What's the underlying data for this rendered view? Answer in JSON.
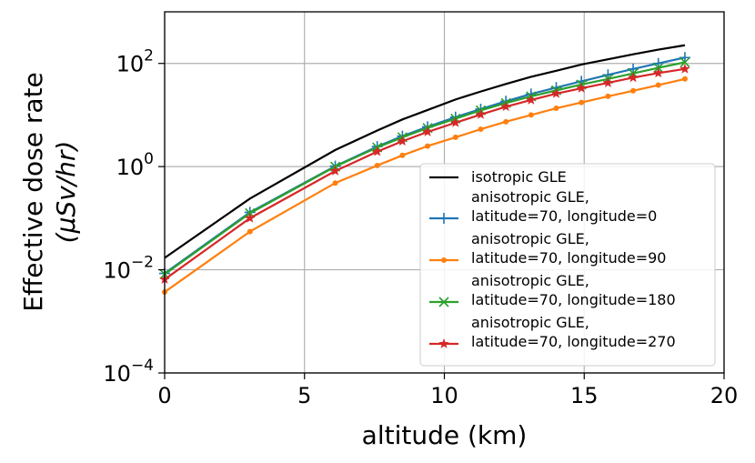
{
  "chart_data": {
    "type": "line",
    "xlabel": "altitude (km)",
    "ylabel_line1": "Effective dose rate",
    "ylabel_line2": "(μSv/hr)",
    "xlim": [
      0,
      20
    ],
    "ylim": [
      0.0001,
      1000
    ],
    "yscale": "log",
    "grid": true,
    "legend_position": "lower-right",
    "x_ticks": [
      0,
      5,
      10,
      15,
      20
    ],
    "x_tick_labels": [
      "0",
      "5",
      "10",
      "15",
      "20"
    ],
    "y_ticks": [
      0.0001,
      0.01,
      1,
      100
    ],
    "y_tick_labels": [
      {
        "base": "10",
        "exp": "−4"
      },
      {
        "base": "10",
        "exp": "−2"
      },
      {
        "base": "10",
        "exp": "0"
      },
      {
        "base": "10",
        "exp": "2"
      }
    ],
    "series": [
      {
        "name": "isotropic GLE",
        "color": "#000000",
        "marker": "none",
        "x": [
          0,
          3.05,
          6.1,
          7.6,
          8.5,
          9.4,
          10.4,
          11.3,
          12.2,
          13.1,
          14.0,
          14.9,
          15.85,
          16.75,
          17.65,
          18.6
        ],
        "y": [
          0.017,
          0.24,
          2.1,
          5.0,
          8.2,
          12.5,
          20,
          28.5,
          40,
          55,
          72,
          95,
          120,
          150,
          185,
          225
        ]
      },
      {
        "name": "anisotropic GLE,\nlatitude=70, longitude=0",
        "color": "#1f77b4",
        "marker": "plus",
        "x": [
          0,
          3.05,
          6.1,
          7.6,
          8.5,
          9.4,
          10.4,
          11.3,
          12.2,
          13.1,
          14.0,
          14.9,
          15.85,
          16.75,
          17.65,
          18.6
        ],
        "y": [
          0.0085,
          0.13,
          1.02,
          2.45,
          3.9,
          5.9,
          9.1,
          13,
          18.5,
          25.5,
          34,
          45,
          60,
          78,
          100,
          130
        ]
      },
      {
        "name": "anisotropic GLE,\nlatitude=70, longitude=90",
        "color": "#ff7f0e",
        "marker": "dot",
        "x": [
          0,
          3.05,
          6.1,
          7.6,
          8.5,
          9.4,
          10.4,
          11.3,
          12.2,
          13.1,
          14.0,
          14.9,
          15.85,
          16.75,
          17.65,
          18.6
        ],
        "y": [
          0.0037,
          0.055,
          0.48,
          1.05,
          1.65,
          2.5,
          3.7,
          5.3,
          7.4,
          10,
          13.5,
          17.5,
          23,
          29.5,
          38,
          50
        ]
      },
      {
        "name": "anisotropic GLE,\nlatitude=70, longitude=180",
        "color": "#2ca02c",
        "marker": "x",
        "x": [
          0,
          3.05,
          6.1,
          7.6,
          8.5,
          9.4,
          10.4,
          11.3,
          12.2,
          13.1,
          14.0,
          14.9,
          15.85,
          16.75,
          17.65,
          18.6
        ],
        "y": [
          0.0082,
          0.125,
          1.0,
          2.35,
          3.7,
          5.6,
          8.5,
          12.3,
          17,
          23,
          30,
          39,
          50,
          64,
          82,
          105
        ]
      },
      {
        "name": "anisotropic GLE,\nlatitude=70, longitude=270",
        "color": "#d62728",
        "marker": "star",
        "x": [
          0,
          3.05,
          6.1,
          7.6,
          8.5,
          9.4,
          10.4,
          11.3,
          12.2,
          13.1,
          14.0,
          14.9,
          15.85,
          16.75,
          17.65,
          18.6
        ],
        "y": [
          0.0065,
          0.1,
          0.82,
          1.95,
          3.1,
          4.7,
          7.1,
          10.2,
          14.5,
          19.5,
          26,
          33,
          42,
          53,
          65,
          78
        ]
      }
    ]
  }
}
